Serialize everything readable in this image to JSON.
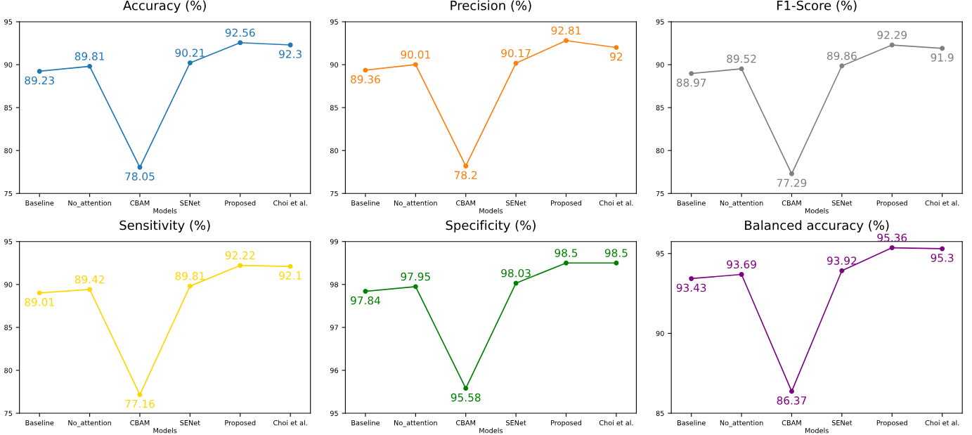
{
  "chart_data": [
    {
      "type": "line",
      "title": "Accuracy (%)",
      "xlabel": "Models",
      "categories": [
        "Baseline",
        "No_attention",
        "CBAM",
        "SENet",
        "Proposed",
        "Choi et al."
      ],
      "series": [
        {
          "color": "#1f77b4",
          "values": [
            89.23,
            89.81,
            78.05,
            90.21,
            92.56,
            92.3
          ]
        }
      ],
      "ylim": [
        75,
        95
      ],
      "yticks": [
        75,
        80,
        85,
        90,
        95
      ],
      "data_labels": true,
      "marker": "circle",
      "grid": false
    },
    {
      "type": "line",
      "title": "Precision (%)",
      "xlabel": "Models",
      "categories": [
        "Baseline",
        "No_attention",
        "CBAM",
        "SENet",
        "Proposed",
        "Choi et al."
      ],
      "series": [
        {
          "color": "#ff7f0e",
          "values": [
            89.36,
            90.01,
            78.2,
            90.17,
            92.81,
            92
          ]
        }
      ],
      "ylim": [
        75,
        95
      ],
      "yticks": [
        75,
        80,
        85,
        90,
        95
      ],
      "data_labels": true,
      "marker": "circle",
      "grid": false
    },
    {
      "type": "line",
      "title": "F1-Score (%)",
      "xlabel": "Models",
      "categories": [
        "Baseline",
        "No_attention",
        "CBAM",
        "SENet",
        "Proposed",
        "Choi et al."
      ],
      "series": [
        {
          "color": "#808080",
          "values": [
            88.97,
            89.52,
            77.29,
            89.86,
            92.29,
            91.9
          ]
        }
      ],
      "ylim": [
        75,
        95
      ],
      "yticks": [
        75,
        80,
        85,
        90,
        95
      ],
      "data_labels": true,
      "marker": "circle",
      "grid": false
    },
    {
      "type": "line",
      "title": "Sensitivity (%)",
      "xlabel": "Models",
      "categories": [
        "Baseline",
        "No_attention",
        "CBAM",
        "SENet",
        "Proposed",
        "Choi et al."
      ],
      "series": [
        {
          "color": "#ffd700",
          "values": [
            89.01,
            89.42,
            77.16,
            89.81,
            92.22,
            92.1
          ]
        }
      ],
      "ylim": [
        75,
        95
      ],
      "yticks": [
        75,
        80,
        85,
        90,
        95
      ],
      "data_labels": true,
      "marker": "circle",
      "grid": false
    },
    {
      "type": "line",
      "title": "Specificity (%)",
      "xlabel": "Models",
      "categories": [
        "Baseline",
        "No_attention",
        "CBAM",
        "SENet",
        "Proposed",
        "Choi et al."
      ],
      "series": [
        {
          "color": "#008000",
          "values": [
            97.84,
            97.95,
            95.58,
            98.03,
            98.5,
            98.5
          ]
        }
      ],
      "ylim": [
        95,
        99
      ],
      "yticks": [
        95,
        96,
        97,
        98,
        99
      ],
      "data_labels": true,
      "marker": "circle",
      "grid": false
    },
    {
      "type": "line",
      "title": "Balanced accuracy (%)",
      "xlabel": "Models",
      "categories": [
        "Baseline",
        "No_attention",
        "CBAM",
        "SENet",
        "Proposed",
        "Choi et al."
      ],
      "series": [
        {
          "color": "#800080",
          "values": [
            93.43,
            93.69,
            86.37,
            93.92,
            95.36,
            95.3
          ]
        }
      ],
      "ylim": [
        85,
        95.75
      ],
      "yticks": [
        85,
        90,
        95
      ],
      "data_labels": true,
      "marker": "circle",
      "grid": false
    }
  ]
}
